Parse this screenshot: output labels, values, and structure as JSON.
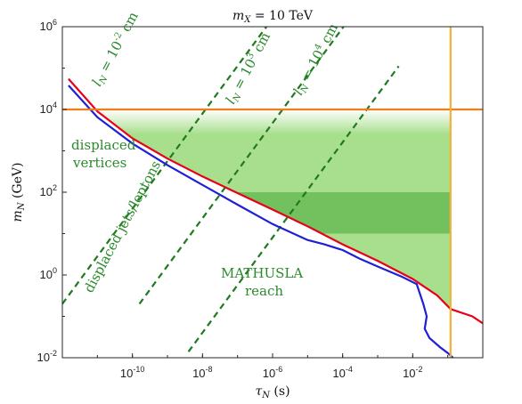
{
  "chart_data": {
    "type": "line",
    "title": "m_X = 10 TeV",
    "xlabel": "τ_N (s)",
    "ylabel": "m_N (GeV)",
    "xscale": "log",
    "yscale": "log",
    "xlim": [
      1e-12,
      1
    ],
    "ylim": [
      0.01,
      1000000
    ],
    "grid": false,
    "x_ticks": [
      {
        "v": 1e-10,
        "base": "10",
        "exp": "-10"
      },
      {
        "v": 1e-08,
        "base": "10",
        "exp": "-8"
      },
      {
        "v": 1e-06,
        "base": "10",
        "exp": "-6"
      },
      {
        "v": 0.0001,
        "base": "10",
        "exp": "-4"
      },
      {
        "v": 0.01,
        "base": "10",
        "exp": "-2"
      }
    ],
    "y_ticks": [
      {
        "v": 0.01,
        "base": "10",
        "exp": "-2"
      },
      {
        "v": 1,
        "base": "10",
        "exp": "0"
      },
      {
        "v": 100,
        "base": "10",
        "exp": "2"
      },
      {
        "v": 10000,
        "base": "10",
        "exp": "4"
      },
      {
        "v": 1000000,
        "base": "10",
        "exp": "6"
      }
    ],
    "colors": {
      "red": "#e8001a",
      "blue": "#1f1fd6",
      "orange": "#f07d1a",
      "yellow": "#f2b233",
      "green_dashed": "#1f7a1f",
      "reach_light": "#a8df8c",
      "reach_dark": "#72c05e",
      "text_green": "#2b8a2b"
    },
    "series": [
      {
        "key": "red",
        "color": "#e8001a",
        "x": [
          1.5e-12,
          1e-11,
          1e-10,
          1e-09,
          1e-08,
          1e-07,
          1e-06,
          1e-05,
          0.0001,
          0.001,
          0.01,
          0.05,
          0.12,
          0.5,
          1
        ],
        "y": [
          55000,
          9000,
          2000,
          650,
          240,
          95,
          38,
          15,
          5.5,
          2.2,
          0.8,
          0.32,
          0.15,
          0.1,
          0.068
        ]
      },
      {
        "key": "blue",
        "color": "#1f1fd6",
        "x": [
          1.5e-12,
          1e-11,
          1e-10,
          1e-09,
          1e-08,
          1e-07,
          1e-06,
          1e-05,
          3e-05,
          0.0001,
          0.0003,
          0.001,
          0.005,
          0.013,
          0.02,
          0.025,
          0.022,
          0.03,
          0.06,
          0.1,
          0.14
        ],
        "y": [
          38000,
          6500,
          1500,
          450,
          150,
          50,
          17,
          7,
          5.5,
          4,
          2.5,
          1.6,
          0.9,
          0.6,
          0.2,
          0.1,
          0.05,
          0.03,
          0.018,
          0.013,
          0.01
        ]
      },
      {
        "key": "orange-hline",
        "color": "#f07d1a",
        "x": [
          1e-12,
          1
        ],
        "y": [
          10000,
          10000
        ]
      },
      {
        "key": "yellow-vline",
        "color": "#f2b233",
        "x": [
          0.12,
          0.12
        ],
        "y": [
          0.01,
          1000000
        ]
      }
    ],
    "dashed_lines": [
      {
        "label": "l_N = 10^-2 cm",
        "tau0": 1e-12,
        "m0": 0.2,
        "slope": 0.5
      },
      {
        "label": "l_N = 10^3 cm",
        "tau0": 1e-12,
        "m0": 0.2,
        "slope": 0.5
      },
      {
        "label": "l_N = 10^4 cm",
        "tau0": 1e-12,
        "m0": 0.014,
        "slope": 0.5
      }
    ],
    "reach_region": {
      "tau_max": 0.12,
      "m_top": 10000,
      "dark_band_m": [
        10,
        100
      ]
    },
    "annotations": {
      "displaced_vertices_line1": "displaced",
      "displaced_vertices_line2": "vertices",
      "displaced_jets": "displaced jets/leptons",
      "mathusla_line1": "MATHUSLA",
      "mathusla_line2": "reach"
    }
  }
}
